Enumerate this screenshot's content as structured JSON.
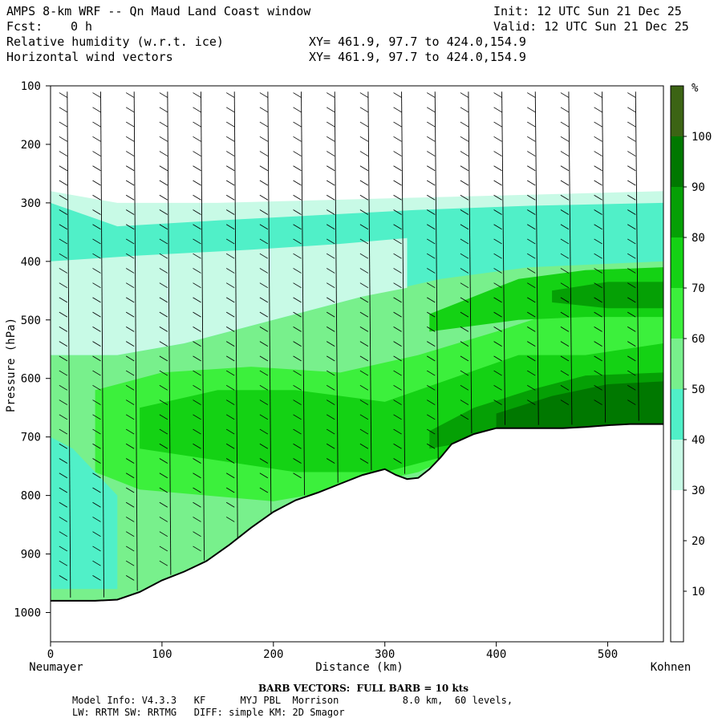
{
  "header": {
    "title": "AMPS 8-km WRF -- Qn Maud Land Coast window",
    "init": "Init: 12 UTC Sun 21 Dec 25",
    "fcst_label": "Fcst:",
    "fcst_value": "0 h",
    "valid": "Valid: 12 UTC Sun 21 Dec 25",
    "field1": "Relative humidity (w.r.t. ice)",
    "field2": "Horizontal wind vectors",
    "xy1": "XY= 461.9, 97.7 to 424.0,154.9",
    "xy2": "XY= 461.9, 97.7 to 424.0,154.9"
  },
  "footer": {
    "barb_note": "BARB VECTORS:  FULL BARB = 10 kts",
    "model_line1": "Model Info: V4.3.3   KF      MYJ PBL  Morrison           8.0 km,  60 levels,",
    "model_line2": "LW: RRTM SW: RRTMG   DIFF: simple KM: 2D Smagor"
  },
  "chart_data": {
    "type": "heatmap",
    "subtype": "vertical cross-section",
    "title": "Relative humidity (w.r.t. ice) with horizontal wind vectors",
    "xlabel": "Distance (km)",
    "ylabel": "Pressure (hPa)",
    "x_start_label": "Neumayer",
    "x_end_label": "Kohnen",
    "xlim": [
      0,
      550
    ],
    "ylim": [
      100,
      1050
    ],
    "xticks": [
      0,
      100,
      200,
      300,
      400,
      500
    ],
    "yticks": [
      100,
      200,
      300,
      400,
      500,
      600,
      700,
      800,
      900,
      1000
    ],
    "colorbar": {
      "unit": "%",
      "levels": [
        10,
        20,
        30,
        40,
        50,
        60,
        70,
        80,
        90,
        100
      ],
      "colors": [
        "#ffffff",
        "#ffffff",
        "#ffffff",
        "#c8fae6",
        "#50f0c8",
        "#78f08c",
        "#3cf03c",
        "#14d214",
        "#05a005",
        "#007800",
        "#3c6414"
      ]
    },
    "terrain_profile": {
      "distance_km": [
        0,
        20,
        40,
        60,
        80,
        100,
        120,
        140,
        160,
        180,
        200,
        220,
        240,
        260,
        280,
        300,
        310,
        320,
        330,
        340,
        350,
        360,
        380,
        400,
        420,
        440,
        460,
        480,
        500,
        520,
        550
      ],
      "surface_pressure_hpa": [
        980,
        980,
        980,
        978,
        965,
        945,
        930,
        912,
        885,
        855,
        828,
        808,
        795,
        780,
        765,
        755,
        765,
        772,
        770,
        755,
        735,
        712,
        695,
        685,
        685,
        685,
        685,
        683,
        680,
        678,
        678
      ]
    },
    "rh_regions": [
      {
        "range": "<30",
        "region": "upper troposphere above ~300 hPa"
      },
      {
        "range": "30-40",
        "region": "band near 300-560 hPa, thickest at western end"
      },
      {
        "range": "40-50",
        "region": "layer near 350-480 hPa and lower western column 750-950 hPa"
      },
      {
        "range": "50-70",
        "region": "mid levels 450-750 hPa across section"
      },
      {
        "range": "70-90",
        "region": "lower troposphere 600-750 hPa, and 450-500 hPa east of 400 km"
      },
      {
        "range": "90-100",
        "region": "layer near 620-700 hPa east of 380 km"
      }
    ],
    "wind_vectors": {
      "column_spacing_km": 15,
      "description": "Wind barbs along each column; mostly north-south shafts with 10-25 kt barbs, weaker winds at low levels"
    }
  }
}
